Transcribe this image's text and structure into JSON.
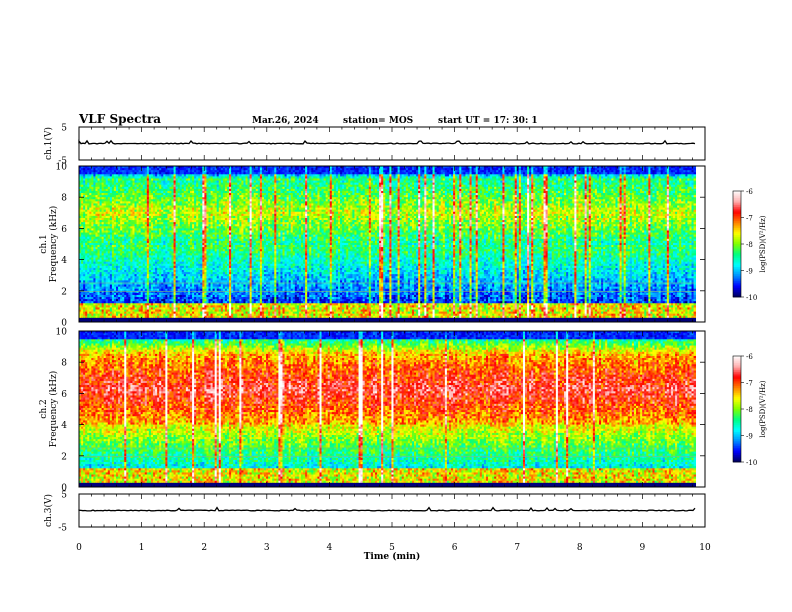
{
  "header": {
    "title": "VLF Spectra",
    "date": "Mar.26, 2024",
    "station": "station= MOS",
    "start": "start  UT  =   17: 30: 1"
  },
  "chart_data": [
    {
      "type": "line",
      "panel": "ch1-voltage",
      "ylabel": "ch.1(V)",
      "ylim": [
        -5,
        5
      ],
      "yticks": [
        "5",
        "-5"
      ],
      "baseline_value": 0
    },
    {
      "type": "heatmap",
      "panel": "ch1-spectrogram",
      "ylabel": "ch.1\nFrequency (kHz)",
      "ylim": [
        0,
        10
      ],
      "yticks": [
        "0",
        "2",
        "4",
        "6",
        "8",
        "10"
      ],
      "dominant_band_khz": [
        5,
        9
      ],
      "colorbar": {
        "label": "log(PSD)(V²/Hz)",
        "range": [
          -10,
          -6
        ],
        "ticks": [
          "-6",
          "-7",
          "-8",
          "-9",
          "-10"
        ]
      }
    },
    {
      "type": "heatmap",
      "panel": "ch2-spectrogram",
      "ylabel": "ch.2\nFrequency (kHz)",
      "ylim": [
        0,
        10
      ],
      "yticks": [
        "0",
        "2",
        "4",
        "6",
        "8",
        "10"
      ],
      "dominant_band_khz": [
        4,
        8.5
      ],
      "colorbar": {
        "label": "log(PSD)(V²/Hz)",
        "range": [
          -10,
          -6
        ],
        "ticks": [
          "-6",
          "-7",
          "-8",
          "-9",
          "-10"
        ]
      }
    },
    {
      "type": "line",
      "panel": "ch3-voltage",
      "ylabel": "ch.3(V)",
      "ylim": [
        -5,
        5
      ],
      "yticks": [
        "5",
        "-5"
      ],
      "baseline_value": 0
    }
  ],
  "xaxis": {
    "label": "Time (min)",
    "range": [
      0,
      10
    ],
    "ticks": [
      "0",
      "1",
      "2",
      "3",
      "4",
      "5",
      "6",
      "7",
      "8",
      "9",
      "10"
    ],
    "data_end": 9.85
  },
  "colormap": [
    "#00005a",
    "#0000ff",
    "#0090ff",
    "#00ffff",
    "#00ff80",
    "#80ff00",
    "#ffff00",
    "#ff8000",
    "#ff0000",
    "#ffb0b0",
    "#ffffff"
  ]
}
